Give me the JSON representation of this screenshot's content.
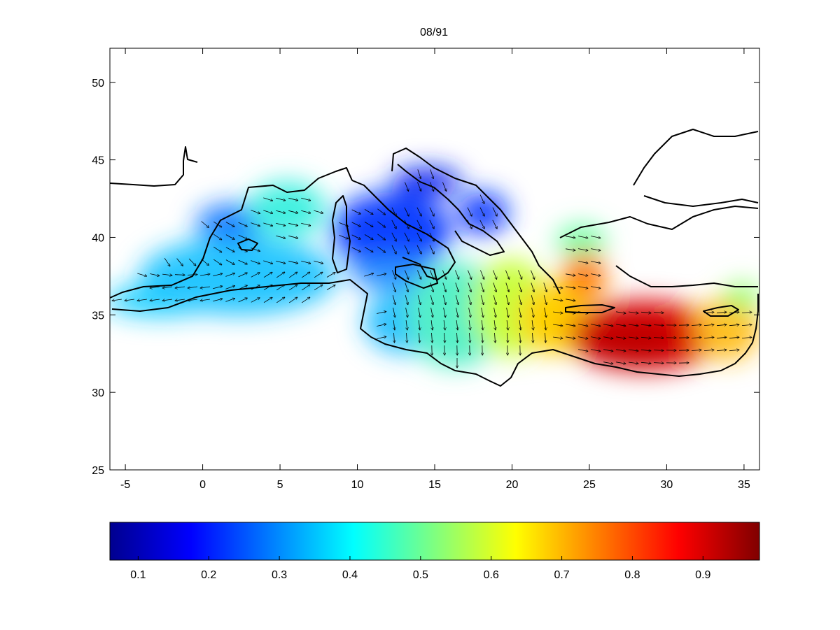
{
  "title": "08/91",
  "map": {
    "x_ticks": [
      "-5",
      "0",
      "5",
      "10",
      "15",
      "20",
      "25",
      "30",
      "35"
    ],
    "y_ticks": [
      "50",
      "45",
      "40",
      "35",
      "30",
      "25"
    ],
    "lon_range": [
      -6,
      36
    ],
    "lat_range": [
      25,
      52.2
    ]
  },
  "colorbar": {
    "colormap": "jet",
    "range": [
      0.06,
      0.98
    ],
    "ticks": [
      "0.1",
      "0.2",
      "0.3",
      "0.4",
      "0.5",
      "0.6",
      "0.7",
      "0.8",
      "0.9"
    ]
  },
  "colors": {
    "land_outline": "#000000",
    "background": "#ffffff"
  }
}
